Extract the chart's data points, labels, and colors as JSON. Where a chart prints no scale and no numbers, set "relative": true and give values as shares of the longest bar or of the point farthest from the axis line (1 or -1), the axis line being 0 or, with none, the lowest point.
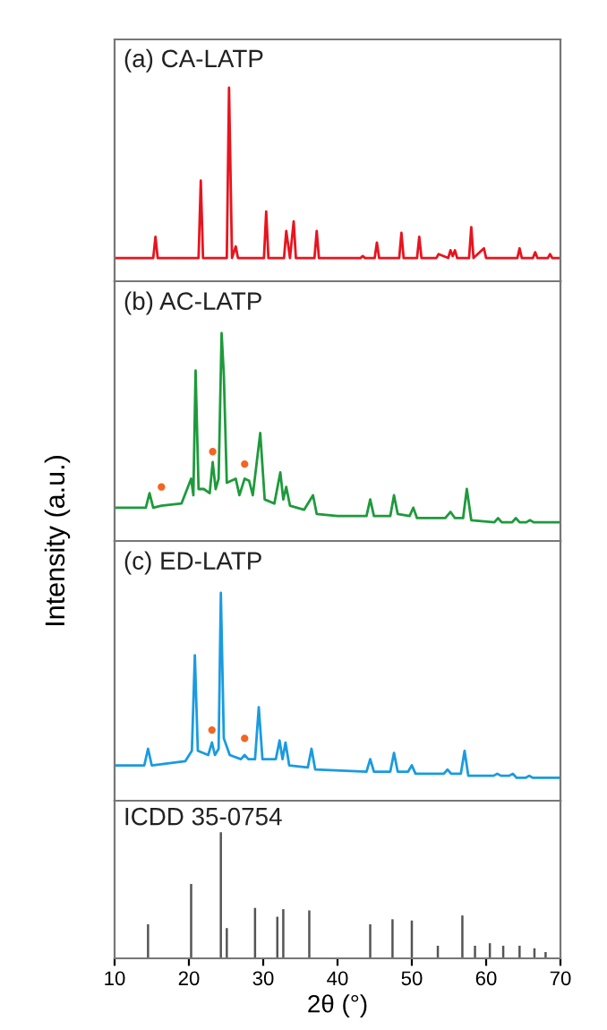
{
  "chart_data": [
    {
      "type": "line",
      "title": "(a) CA-LATP",
      "relative": true,
      "xlim": [
        10,
        70
      ],
      "xticks": [
        10,
        20,
        30,
        40,
        50,
        60,
        70
      ],
      "tick_labels": false,
      "series": [
        {
          "color": "#e8141e",
          "x": [
            10,
            15.2,
            15.5,
            15.8,
            21.3,
            21.6,
            21.9,
            25.1,
            25.4,
            25.8,
            26.3,
            26.6,
            30.1,
            30.4,
            30.7,
            32.8,
            33.1,
            33.6,
            34.1,
            34.4,
            36.9,
            37.2,
            37.5,
            43.1,
            43.4,
            43.7,
            45.0,
            45.3,
            45.6,
            48.3,
            48.6,
            48.9,
            50.7,
            51.0,
            51.3,
            53.3,
            53.6,
            54.9,
            55.2,
            55.5,
            55.8,
            56.1,
            57.7,
            58.0,
            58.3,
            59.7,
            60.0,
            64.2,
            64.5,
            64.8,
            66.3,
            66.6,
            66.9,
            68.3,
            68.6,
            68.9,
            70
          ],
          "values": [
            0.12,
            0.12,
            0.23,
            0.12,
            0.12,
            0.52,
            0.12,
            0.12,
            1.0,
            0.12,
            0.18,
            0.12,
            0.12,
            0.36,
            0.12,
            0.12,
            0.26,
            0.12,
            0.31,
            0.12,
            0.12,
            0.26,
            0.12,
            0.12,
            0.13,
            0.12,
            0.12,
            0.2,
            0.12,
            0.12,
            0.25,
            0.12,
            0.12,
            0.23,
            0.12,
            0.12,
            0.14,
            0.12,
            0.16,
            0.13,
            0.16,
            0.12,
            0.12,
            0.28,
            0.12,
            0.17,
            0.12,
            0.12,
            0.17,
            0.12,
            0.12,
            0.15,
            0.12,
            0.12,
            0.14,
            0.12,
            0.12
          ]
        }
      ]
    },
    {
      "type": "line",
      "title": "(b) AC-LATP",
      "ylabel": "Intensity (a.u.)",
      "relative": true,
      "xlim": [
        10,
        70
      ],
      "xticks": [
        10,
        20,
        30,
        40,
        50,
        60,
        70
      ],
      "tick_labels": false,
      "series": [
        {
          "color": "#1e9a3c",
          "x": [
            10,
            14.2,
            14.7,
            15.2,
            16.3,
            19,
            20.3,
            20.6,
            20.9,
            21.3,
            22,
            22.8,
            23.2,
            23.6,
            24.0,
            24.4,
            24.7,
            25.1,
            26.3,
            26.8,
            27.5,
            28.1,
            28.6,
            29.6,
            30.2,
            31.5,
            32.3,
            32.7,
            33.1,
            33.6,
            35.5,
            36.7,
            37.2,
            40,
            43.9,
            44.4,
            44.9,
            47.1,
            47.6,
            48.1,
            49.7,
            50.2,
            50.7,
            54.5,
            55.2,
            55.8,
            56.9,
            57.4,
            58.0,
            61.1,
            61.6,
            62.1,
            63.5,
            64.0,
            64.5,
            65.4,
            65.9,
            66.4,
            70
          ],
          "values": [
            0.16,
            0.16,
            0.23,
            0.16,
            0.17,
            0.18,
            0.3,
            0.22,
            0.82,
            0.25,
            0.25,
            0.23,
            0.38,
            0.25,
            0.3,
            1.0,
            0.8,
            0.28,
            0.3,
            0.22,
            0.3,
            0.29,
            0.22,
            0.52,
            0.2,
            0.18,
            0.33,
            0.2,
            0.26,
            0.17,
            0.15,
            0.22,
            0.13,
            0.12,
            0.12,
            0.2,
            0.12,
            0.12,
            0.22,
            0.13,
            0.12,
            0.16,
            0.11,
            0.11,
            0.14,
            0.11,
            0.11,
            0.25,
            0.1,
            0.09,
            0.11,
            0.09,
            0.09,
            0.11,
            0.09,
            0.09,
            0.1,
            0.09,
            0.09
          ]
        },
        {
          "type": "scatter",
          "marker": "circle",
          "color": "#f26522",
          "x": [
            16.3,
            23.2,
            27.5
          ],
          "values": [
            0.26,
            0.43,
            0.37
          ]
        }
      ]
    },
    {
      "type": "line",
      "title": "(c) ED-LATP",
      "relative": true,
      "xlim": [
        10,
        70
      ],
      "xticks": [
        10,
        20,
        30,
        40,
        50,
        60,
        70
      ],
      "tick_labels": false,
      "series": [
        {
          "color": "#1a9be0",
          "x": [
            10,
            14.0,
            14.5,
            15.0,
            19.5,
            20.4,
            20.8,
            21.2,
            22.6,
            23.1,
            23.5,
            24.0,
            24.3,
            24.7,
            25.5,
            27.0,
            27.5,
            28.0,
            28.9,
            29.4,
            29.9,
            31.7,
            32.2,
            32.6,
            33.0,
            33.5,
            36.0,
            36.5,
            37.0,
            43.9,
            44.4,
            44.9,
            47.1,
            47.6,
            48.1,
            49.5,
            50.0,
            50.5,
            54.3,
            54.8,
            55.3,
            56.6,
            57.1,
            57.6,
            61.0,
            61.5,
            62.0,
            63.1,
            63.6,
            64.1,
            65.3,
            65.8,
            66.3,
            70
          ],
          "values": [
            0.17,
            0.17,
            0.25,
            0.17,
            0.19,
            0.24,
            0.7,
            0.24,
            0.22,
            0.28,
            0.22,
            0.25,
            1.0,
            0.3,
            0.22,
            0.2,
            0.22,
            0.2,
            0.2,
            0.45,
            0.2,
            0.2,
            0.29,
            0.2,
            0.28,
            0.17,
            0.16,
            0.25,
            0.15,
            0.14,
            0.2,
            0.14,
            0.14,
            0.23,
            0.14,
            0.14,
            0.17,
            0.13,
            0.13,
            0.15,
            0.13,
            0.13,
            0.24,
            0.12,
            0.12,
            0.13,
            0.12,
            0.12,
            0.13,
            0.11,
            0.11,
            0.12,
            0.11,
            0.11
          ]
        },
        {
          "type": "scatter",
          "marker": "circle",
          "color": "#f26522",
          "x": [
            23.1,
            27.5
          ],
          "values": [
            0.34,
            0.3
          ]
        }
      ]
    },
    {
      "type": "bar",
      "title": "ICDD 35-0754",
      "xlabel": "2θ (°)",
      "relative": true,
      "xlim": [
        10,
        70
      ],
      "xticks": [
        10,
        20,
        30,
        40,
        50,
        60,
        70
      ],
      "tick_labels": "x",
      "series": [
        {
          "color": "#555555",
          "x": [
            14.5,
            20.3,
            24.3,
            25.1,
            28.9,
            31.9,
            32.7,
            36.2,
            44.4,
            47.4,
            50.0,
            53.5,
            56.8,
            58.5,
            60.5,
            62.3,
            64.5,
            66.5,
            68.0
          ],
          "values": [
            0.27,
            0.59,
            1.0,
            0.24,
            0.4,
            0.33,
            0.39,
            0.38,
            0.27,
            0.31,
            0.3,
            0.1,
            0.34,
            0.1,
            0.12,
            0.1,
            0.1,
            0.08,
            0.05
          ]
        }
      ]
    }
  ]
}
